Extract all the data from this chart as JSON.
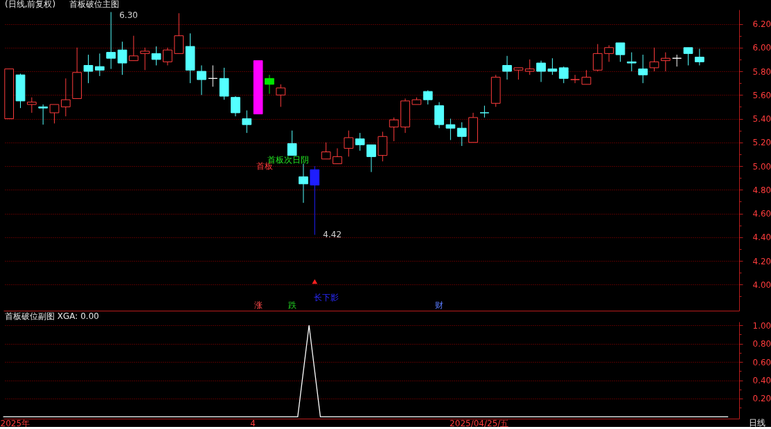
{
  "chart_data": [
    {
      "type": "candlestick",
      "title": "(日线,前复权)",
      "subtitle": "首板破位主图",
      "categories": [
        null,
        null,
        null,
        null,
        null,
        null,
        null,
        null,
        null,
        null,
        null,
        null,
        null,
        null,
        null,
        null,
        null,
        null,
        null,
        null,
        null,
        null,
        null,
        null,
        null,
        null,
        null,
        null,
        null,
        null,
        null,
        null,
        null,
        null,
        null,
        null,
        null,
        null,
        null,
        null,
        null,
        null,
        null,
        null,
        null,
        null,
        null,
        null,
        null,
        null,
        null,
        null,
        null,
        null,
        null,
        null,
        null,
        null,
        null,
        null,
        null,
        null,
        null,
        null,
        null
      ],
      "ohlc": [
        [
          5.4,
          5.82,
          5.4,
          5.82
        ],
        [
          5.77,
          5.78,
          5.49,
          5.55
        ],
        [
          5.52,
          5.58,
          5.45,
          5.54
        ],
        [
          5.5,
          5.52,
          5.35,
          5.49
        ],
        [
          5.45,
          5.52,
          5.36,
          5.52
        ],
        [
          5.5,
          5.74,
          5.42,
          5.56
        ],
        [
          5.57,
          6.0,
          5.57,
          5.79
        ],
        [
          5.85,
          5.94,
          5.7,
          5.8
        ],
        [
          5.84,
          5.95,
          5.76,
          5.81
        ],
        [
          5.96,
          6.3,
          5.82,
          5.91
        ],
        [
          5.98,
          6.05,
          5.77,
          5.87
        ],
        [
          5.89,
          6.1,
          5.89,
          5.93
        ],
        [
          5.95,
          6.0,
          5.81,
          5.97
        ],
        [
          5.95,
          6.01,
          5.85,
          5.9
        ],
        [
          5.88,
          6.0,
          5.85,
          5.98
        ],
        [
          5.95,
          6.29,
          5.95,
          6.1
        ],
        [
          6.01,
          6.12,
          5.7,
          5.81
        ],
        [
          5.8,
          5.85,
          5.6,
          5.73
        ],
        [
          5.74,
          5.85,
          5.67,
          5.74
        ],
        [
          5.74,
          5.83,
          5.56,
          5.59
        ],
        [
          5.58,
          5.59,
          5.42,
          5.45
        ],
        [
          5.4,
          5.47,
          5.28,
          5.35
        ],
        [
          5.44,
          5.89,
          5.44,
          5.89
        ],
        [
          5.74,
          5.77,
          5.61,
          5.69
        ],
        [
          5.6,
          5.69,
          5.5,
          5.66
        ],
        [
          5.19,
          5.3,
          5.09,
          5.09
        ],
        [
          4.91,
          5.02,
          4.69,
          4.85
        ],
        [
          4.84,
          5.0,
          4.42,
          4.97
        ],
        [
          5.06,
          5.2,
          5.06,
          5.12
        ],
        [
          5.02,
          5.15,
          5.02,
          5.08
        ],
        [
          5.15,
          5.3,
          5.08,
          5.24
        ],
        [
          5.23,
          5.28,
          5.13,
          5.18
        ],
        [
          5.18,
          5.18,
          4.95,
          5.08
        ],
        [
          5.09,
          5.29,
          5.04,
          5.25
        ],
        [
          5.33,
          5.41,
          5.21,
          5.39
        ],
        [
          5.33,
          5.57,
          5.28,
          5.55
        ],
        [
          5.52,
          5.58,
          5.52,
          5.56
        ],
        [
          5.63,
          5.64,
          5.52,
          5.56
        ],
        [
          5.51,
          5.54,
          5.32,
          5.35
        ],
        [
          5.35,
          5.4,
          5.22,
          5.32
        ],
        [
          5.32,
          5.37,
          5.17,
          5.25
        ],
        [
          5.2,
          5.45,
          5.2,
          5.41
        ],
        [
          5.45,
          5.51,
          5.41,
          5.45
        ],
        [
          5.53,
          5.77,
          5.5,
          5.75
        ],
        [
          5.85,
          5.93,
          5.73,
          5.8
        ],
        [
          5.81,
          5.83,
          5.73,
          5.83
        ],
        [
          5.8,
          5.9,
          5.77,
          5.82
        ],
        [
          5.87,
          5.89,
          5.71,
          5.8
        ],
        [
          5.82,
          5.91,
          5.77,
          5.8
        ],
        [
          5.83,
          5.84,
          5.7,
          5.74
        ],
        [
          5.73,
          5.77,
          5.7,
          5.73
        ],
        [
          5.69,
          5.81,
          5.69,
          5.75
        ],
        [
          5.81,
          6.03,
          5.8,
          5.95
        ],
        [
          5.95,
          6.02,
          5.88,
          6.0
        ],
        [
          6.04,
          6.04,
          5.88,
          5.94
        ],
        [
          5.88,
          5.96,
          5.8,
          5.87
        ],
        [
          5.82,
          5.94,
          5.7,
          5.77
        ],
        [
          5.83,
          6.0,
          5.8,
          5.88
        ],
        [
          5.89,
          5.96,
          5.8,
          5.91
        ],
        [
          5.91,
          5.94,
          5.84,
          5.91
        ],
        [
          6.0,
          6.0,
          5.85,
          5.95
        ],
        [
          5.92,
          5.99,
          5.85,
          5.88
        ],
        null,
        null,
        null
      ],
      "colors": [
        "#ff3c3c",
        "#54ffff",
        "#ff3c3c",
        "#54ffff",
        "#ff3c3c",
        "#ff3c3c",
        "#ff3c3c",
        "#54ffff",
        "#54ffff",
        "#54ffff",
        "#54ffff",
        "#ff3c3c",
        "#ff3c3c",
        "#54ffff",
        "#ff3c3c",
        "#ff3c3c",
        "#54ffff",
        "#54ffff",
        "#ffffff",
        "#54ffff",
        "#54ffff",
        "#54ffff",
        "#ff00ff",
        "#00e600",
        "#ff3c3c",
        "#54ffff",
        "#54ffff",
        "#1e1eff",
        "#ff3c3c",
        "#ff3c3c",
        "#ff3c3c",
        "#54ffff",
        "#54ffff",
        "#ff3c3c",
        "#ff3c3c",
        "#ff3c3c",
        "#ff3c3c",
        "#54ffff",
        "#54ffff",
        "#54ffff",
        "#54ffff",
        "#ff3c3c",
        "#54ffff",
        "#ff3c3c",
        "#54ffff",
        "#ff3c3c",
        "#ff3c3c",
        "#54ffff",
        "#54ffff",
        "#54ffff",
        "#ff3c3c",
        "#ff3c3c",
        "#ff3c3c",
        "#ff3c3c",
        "#54ffff",
        "#54ffff",
        "#54ffff",
        "#ff3c3c",
        "#ff3c3c",
        "#ffffff",
        "#54ffff",
        "#54ffff",
        null,
        null,
        null
      ],
      "color": "#ff3c3c",
      "series": [
        {
          "type": "scatter",
          "color": "#ff2020",
          "marker": "triangle",
          "values": [
            null,
            null,
            null,
            null,
            null,
            null,
            null,
            null,
            null,
            null,
            null,
            null,
            null,
            null,
            null,
            null,
            null,
            null,
            null,
            null,
            null,
            null,
            null,
            null,
            null,
            null,
            null,
            4.02,
            null,
            null,
            null,
            null,
            null,
            null,
            null,
            null,
            null,
            null,
            null,
            null,
            null,
            null,
            null,
            null,
            null,
            null,
            null,
            null,
            null,
            null,
            null,
            null,
            null,
            null,
            null,
            null,
            null,
            null,
            null,
            null,
            null,
            null,
            null,
            null,
            null
          ]
        }
      ],
      "ylim": [
        3.78,
        6.32
      ],
      "yticks": [
        {
          "value": 3.9,
          "label": null
        },
        {
          "value": 4.0,
          "label": "4.00"
        },
        {
          "value": 4.1,
          "label": null
        },
        {
          "value": 4.2,
          "label": "4.20"
        },
        {
          "value": 4.3,
          "label": null
        },
        {
          "value": 4.4,
          "label": "4.40"
        },
        {
          "value": 4.5,
          "label": null
        },
        {
          "value": 4.6,
          "label": "4.60"
        },
        {
          "value": 4.7,
          "label": null
        },
        {
          "value": 4.8,
          "label": "4.80"
        },
        {
          "value": 4.9,
          "label": null
        },
        {
          "value": 5.0,
          "label": "5.00"
        },
        {
          "value": 5.1,
          "label": null
        },
        {
          "value": 5.2,
          "label": "5.20"
        },
        {
          "value": 5.3,
          "label": null
        },
        {
          "value": 5.4,
          "label": "5.40"
        },
        {
          "value": 5.5,
          "label": null
        },
        {
          "value": 5.6,
          "label": "5.60"
        },
        {
          "value": 5.7,
          "label": null
        },
        {
          "value": 5.8,
          "label": "5.80"
        },
        {
          "value": 5.9,
          "label": null
        },
        {
          "value": 6.0,
          "label": "6.00"
        },
        {
          "value": 6.1,
          "label": null
        },
        {
          "value": 6.2,
          "label": "6.20"
        }
      ],
      "grid": "y",
      "tick_labels": "y",
      "annotations": [
        "6.30",
        "4.42",
        "首板",
        "首板次日阴",
        "涨",
        "跌",
        "长下影",
        "财"
      ]
    },
    {
      "type": "line",
      "title": "首板破位副图 XGA: 0.00",
      "categories": [
        null,
        "2025年",
        null,
        null,
        null,
        null,
        null,
        null,
        null,
        null,
        null,
        null,
        null,
        null,
        null,
        null,
        null,
        null,
        null,
        null,
        null,
        null,
        "4",
        null,
        null,
        null,
        null,
        null,
        null,
        null,
        null,
        null,
        null,
        null,
        null,
        null,
        null,
        null,
        null,
        null,
        null,
        null,
        "2025/04/25/五",
        null,
        null,
        null,
        null,
        null,
        null,
        null,
        null,
        null,
        null,
        null,
        null,
        null,
        null,
        null,
        null,
        null,
        null,
        null,
        null,
        null,
        null
      ],
      "values": [
        0,
        0,
        0,
        0,
        0,
        0,
        0,
        0,
        0,
        0,
        0,
        0,
        0,
        0,
        0,
        0,
        0,
        0,
        0,
        0,
        0,
        0,
        0,
        0,
        0,
        0,
        0,
        1,
        0,
        0,
        0,
        0,
        0,
        0,
        0,
        0,
        0,
        0,
        0,
        0,
        0,
        0,
        0,
        0,
        0,
        0,
        0,
        0,
        0,
        0,
        0,
        0,
        0,
        0,
        0,
        0,
        0,
        0,
        0,
        0,
        0,
        0,
        0,
        0,
        0
      ],
      "color": "#ffffff",
      "ylim": [
        -0.02,
        1.04
      ],
      "yticks": [
        {
          "value": 0.1,
          "label": null
        },
        {
          "value": 0.2,
          "label": "0.20"
        },
        {
          "value": 0.3,
          "label": null
        },
        {
          "value": 0.4,
          "label": "0.40"
        },
        {
          "value": 0.5,
          "label": null
        },
        {
          "value": 0.6,
          "label": "0.60"
        },
        {
          "value": 0.7,
          "label": null
        },
        {
          "value": 0.8,
          "label": "0.80"
        },
        {
          "value": 0.9,
          "label": null
        },
        {
          "value": 1.0,
          "label": "1.00"
        }
      ],
      "grid": "y",
      "annotations": [
        "日线"
      ]
    }
  ]
}
